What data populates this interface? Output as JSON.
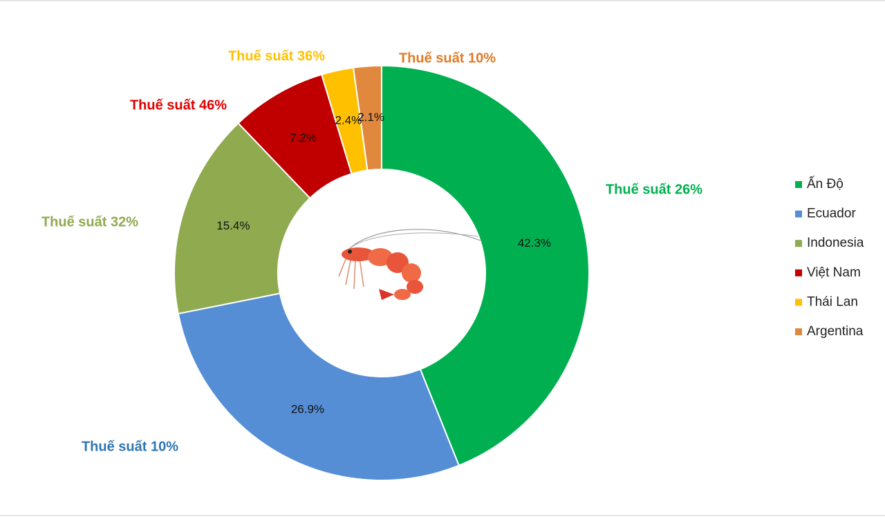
{
  "chart_data": {
    "type": "donut",
    "categories": [
      "Ấn Độ",
      "Ecuador",
      "Indonesia",
      "Việt Nam",
      "Thái Lan",
      "Argentina"
    ],
    "values": [
      42.3,
      26.9,
      15.4,
      7.2,
      2.4,
      2.1
    ],
    "value_labels": [
      "42.3%",
      "26.9%",
      "15.4%",
      "7.2%",
      "2.4%",
      "2.1%"
    ],
    "colors": [
      "#00b050",
      "#558ed5",
      "#8faa4f",
      "#c00000",
      "#ffc000",
      "#e0883e"
    ],
    "annotations": [
      {
        "text": "Thuế suất 26%",
        "color": "#00b050"
      },
      {
        "text": "Thuế suất 10%",
        "color": "#2e75b6"
      },
      {
        "text": "Thuế suất 32%",
        "color": "#8faa4f"
      },
      {
        "text": "Thuế suất 46%",
        "color": "#e00000"
      },
      {
        "text": "Thuế suất 36%",
        "color": "#ffc000"
      },
      {
        "text": "Thuế suất 10%",
        "color": "#e07b28"
      }
    ],
    "legend": "right"
  }
}
